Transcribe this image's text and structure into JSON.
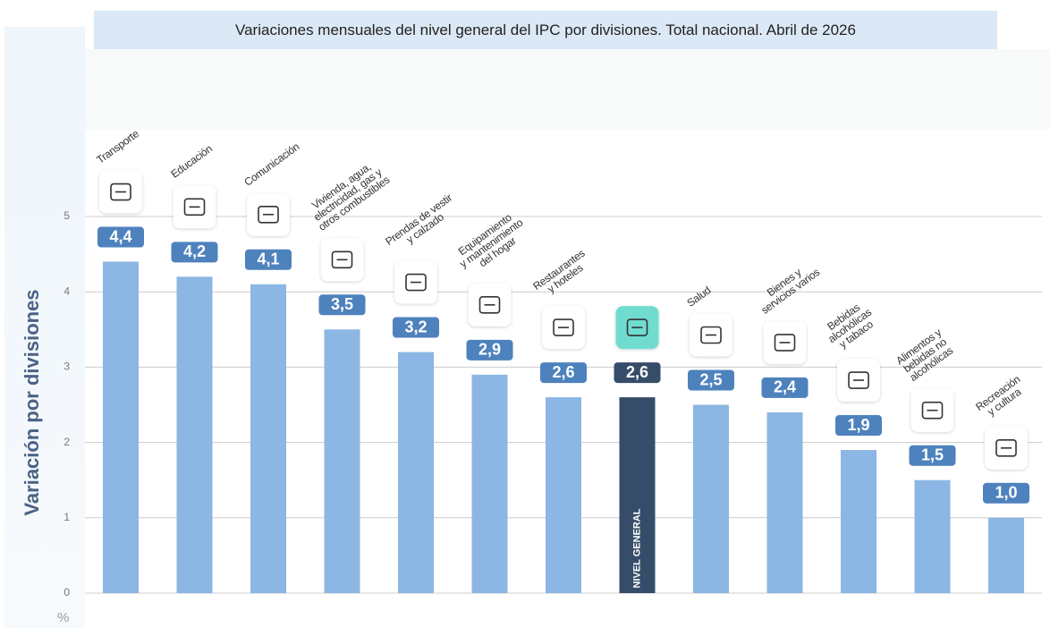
{
  "chart_data": {
    "type": "bar",
    "title": "Variaciones mensuales del nivel general del IPC por divisiones. Total nacional. Abril de 2026",
    "y_label": "Variación por divisiones",
    "y_unit": "%",
    "categories": [
      "Transporte",
      "Educación",
      "Comunicación",
      "Vivienda, agua,\nelectricidad, gas y\notros combustibles",
      "Prendas de vestir\ny calzado",
      "Equipamiento\ny mantenimiento\ndel hogar",
      "Restaurantes\ny hoteles",
      "NIVEL GENERAL",
      "Salud",
      "Bienes y\nservicios varios",
      "Bebidas\nalcohólicas\ny tabaco",
      "Alimentos y\nbebidas no\nalcohólicas",
      "Recreación\ny cultura"
    ],
    "values": [
      4.4,
      4.2,
      4.1,
      3.5,
      3.2,
      2.9,
      2.6,
      2.6,
      2.5,
      2.4,
      1.9,
      1.5,
      1.0
    ],
    "value_labels": [
      "4,4",
      "4,2",
      "4,1",
      "3,5",
      "3,2",
      "2,9",
      "2,6",
      "2,6",
      "2,5",
      "2,4",
      "1,9",
      "1,5",
      "1,0"
    ],
    "color": "#8cb6e3",
    "colors": [
      "#8cb6e3",
      "#8cb6e3",
      "#8cb6e3",
      "#8cb6e3",
      "#8cb6e3",
      "#8cb6e3",
      "#8cb6e3",
      "#364d69",
      "#8cb6e3",
      "#8cb6e3",
      "#8cb6e3",
      "#8cb6e3",
      "#8cb6e3"
    ],
    "label_colors": [
      "#4e82bd",
      "#4e82bd",
      "#4e82bd",
      "#4e82bd",
      "#4e82bd",
      "#4e82bd",
      "#4e82bd",
      "#364d69",
      "#4e82bd",
      "#4e82bd",
      "#4e82bd",
      "#4e82bd",
      "#4e82bd"
    ],
    "icon_colors": [
      "#ffffff",
      "#ffffff",
      "#ffffff",
      "#ffffff",
      "#ffffff",
      "#ffffff",
      "#ffffff",
      "#6fdcd0",
      "#ffffff",
      "#ffffff",
      "#ffffff",
      "#ffffff",
      "#ffffff"
    ],
    "ylim": [
      0,
      5
    ],
    "yticks": [
      0,
      1,
      2,
      3,
      4,
      5
    ],
    "grid": true
  }
}
